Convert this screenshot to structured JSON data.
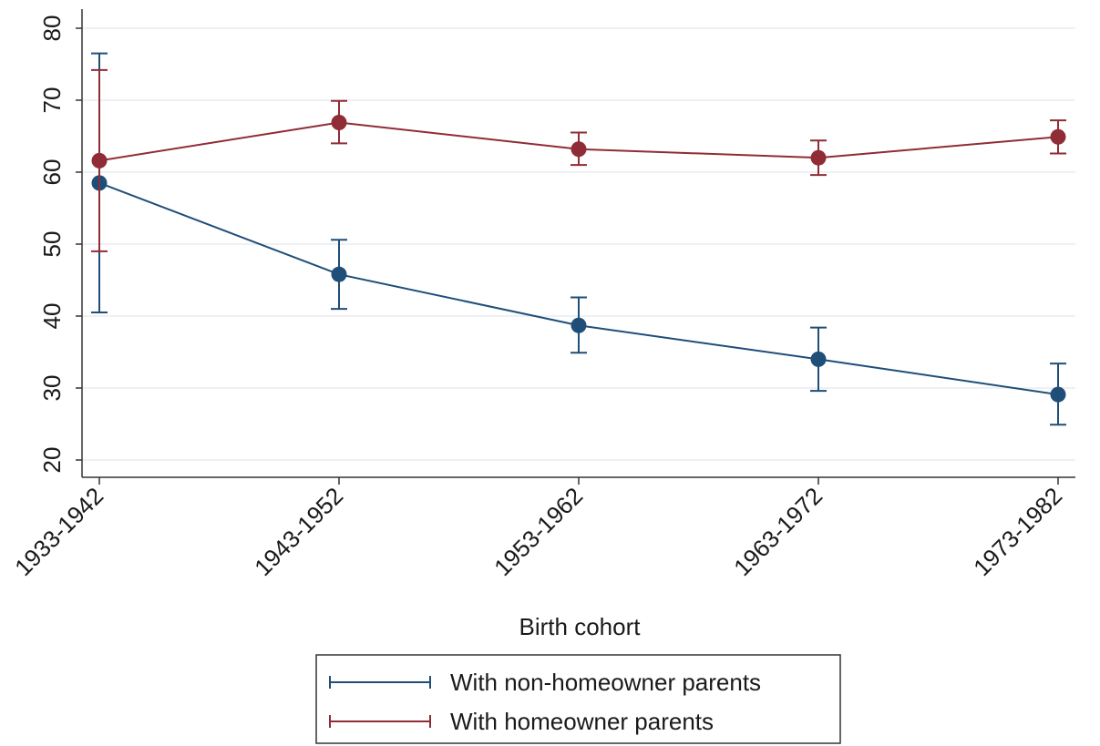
{
  "chart_data": {
    "type": "line",
    "xlabel": "Birth cohort",
    "ylabel": "",
    "title": "",
    "categories": [
      "1933-1942",
      "1943-1952",
      "1953-1962",
      "1963-1972",
      "1973-1982"
    ],
    "ylim": [
      20,
      80
    ],
    "yticks": [
      20,
      30,
      40,
      50,
      60,
      70,
      80
    ],
    "grid": true,
    "legend_position": "bottom",
    "series": [
      {
        "name": "With non-homeowner parents",
        "color": "#1f4e79",
        "values": [
          58.5,
          45.8,
          38.7,
          34.0,
          29.1
        ],
        "ci_low": [
          40.5,
          41.0,
          34.9,
          29.6,
          24.9
        ],
        "ci_high": [
          76.5,
          50.6,
          42.6,
          38.4,
          33.4
        ]
      },
      {
        "name": "With homeowner parents",
        "color": "#902c35",
        "values": [
          61.6,
          66.9,
          63.2,
          62.0,
          64.9
        ],
        "ci_low": [
          49.0,
          64.0,
          61.0,
          59.6,
          62.6
        ],
        "ci_high": [
          74.2,
          69.9,
          65.5,
          64.4,
          67.2
        ]
      }
    ]
  }
}
